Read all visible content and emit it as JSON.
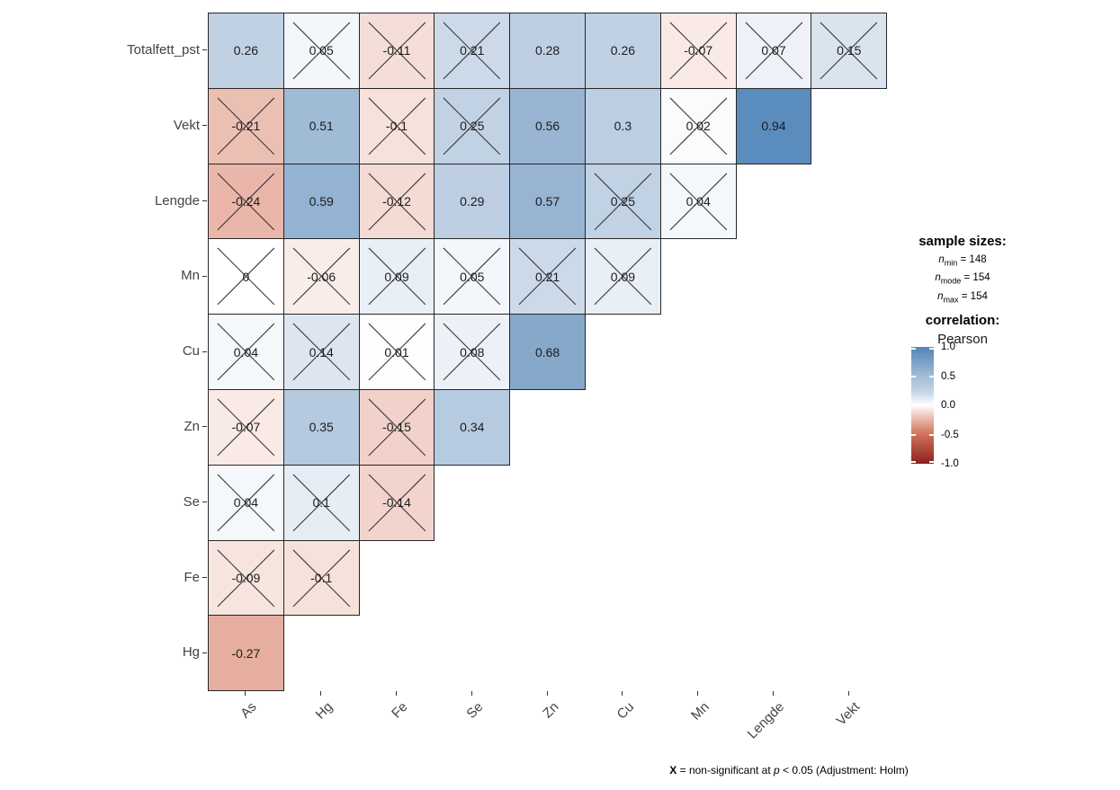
{
  "chart_data": {
    "type": "heatmap",
    "subtype": "lower-triangle-correlation-matrix",
    "title": "",
    "x_categories": [
      "As",
      "Hg",
      "Fe",
      "Se",
      "Zn",
      "Cu",
      "Mn",
      "Lengde",
      "Vekt"
    ],
    "y_categories": [
      "Totalfett_pst",
      "Vekt",
      "Lengde",
      "Mn",
      "Cu",
      "Zn",
      "Se",
      "Fe",
      "Hg"
    ],
    "note": "cells marked significant:false are overprinted with an X (non-significant)",
    "rows": [
      {
        "label": "Totalfett_pst",
        "cells": [
          {
            "value": 0.26,
            "label": "0.26",
            "significant": true
          },
          {
            "value": 0.05,
            "label": "0.05",
            "significant": false
          },
          {
            "value": -0.11,
            "label": "-0.11",
            "significant": false
          },
          {
            "value": 0.21,
            "label": "0.21",
            "significant": false
          },
          {
            "value": 0.28,
            "label": "0.28",
            "significant": true
          },
          {
            "value": 0.26,
            "label": "0.26",
            "significant": true
          },
          {
            "value": -0.07,
            "label": "-0.07",
            "significant": false
          },
          {
            "value": 0.07,
            "label": "0.07",
            "significant": false
          },
          {
            "value": 0.15,
            "label": "0.15",
            "significant": false
          }
        ]
      },
      {
        "label": "Vekt",
        "cells": [
          {
            "value": -0.21,
            "label": "-0.21",
            "significant": false
          },
          {
            "value": 0.51,
            "label": "0.51",
            "significant": true
          },
          {
            "value": -0.1,
            "label": "-0.1",
            "significant": false
          },
          {
            "value": 0.25,
            "label": "0.25",
            "significant": false
          },
          {
            "value": 0.56,
            "label": "0.56",
            "significant": true
          },
          {
            "value": 0.3,
            "label": "0.3",
            "significant": true
          },
          {
            "value": 0.02,
            "label": "0.02",
            "significant": false
          },
          {
            "value": 0.94,
            "label": "0.94",
            "significant": true
          }
        ]
      },
      {
        "label": "Lengde",
        "cells": [
          {
            "value": -0.24,
            "label": "-0.24",
            "significant": false
          },
          {
            "value": 0.59,
            "label": "0.59",
            "significant": true
          },
          {
            "value": -0.12,
            "label": "-0.12",
            "significant": false
          },
          {
            "value": 0.29,
            "label": "0.29",
            "significant": true
          },
          {
            "value": 0.57,
            "label": "0.57",
            "significant": true
          },
          {
            "value": 0.25,
            "label": "0.25",
            "significant": false
          },
          {
            "value": 0.04,
            "label": "0.04",
            "significant": false
          }
        ]
      },
      {
        "label": "Mn",
        "cells": [
          {
            "value": 0,
            "label": "0",
            "significant": false
          },
          {
            "value": -0.06,
            "label": "-0.06",
            "significant": false
          },
          {
            "value": 0.09,
            "label": "0.09",
            "significant": false
          },
          {
            "value": 0.05,
            "label": "0.05",
            "significant": false
          },
          {
            "value": 0.21,
            "label": "0.21",
            "significant": false
          },
          {
            "value": 0.09,
            "label": "0.09",
            "significant": false
          }
        ]
      },
      {
        "label": "Cu",
        "cells": [
          {
            "value": 0.04,
            "label": "0.04",
            "significant": false
          },
          {
            "value": 0.14,
            "label": "0.14",
            "significant": false
          },
          {
            "value": 0.01,
            "label": "0.01",
            "significant": false
          },
          {
            "value": 0.08,
            "label": "0.08",
            "significant": false
          },
          {
            "value": 0.68,
            "label": "0.68",
            "significant": true
          }
        ]
      },
      {
        "label": "Zn",
        "cells": [
          {
            "value": -0.07,
            "label": "-0.07",
            "significant": false
          },
          {
            "value": 0.35,
            "label": "0.35",
            "significant": true
          },
          {
            "value": -0.15,
            "label": "-0.15",
            "significant": false
          },
          {
            "value": 0.34,
            "label": "0.34",
            "significant": true
          }
        ]
      },
      {
        "label": "Se",
        "cells": [
          {
            "value": 0.04,
            "label": "0.04",
            "significant": false
          },
          {
            "value": 0.1,
            "label": "0.1",
            "significant": false
          },
          {
            "value": -0.14,
            "label": "-0.14",
            "significant": false
          }
        ]
      },
      {
        "label": "Fe",
        "cells": [
          {
            "value": -0.09,
            "label": "-0.09",
            "significant": false
          },
          {
            "value": -0.1,
            "label": "-0.1",
            "significant": false
          }
        ]
      },
      {
        "label": "Hg",
        "cells": [
          {
            "value": -0.27,
            "label": "-0.27",
            "significant": true
          }
        ]
      }
    ],
    "legend": {
      "sample_sizes_title": "sample sizes:",
      "sample_sizes": [
        {
          "n_sub": "min",
          "value": "148"
        },
        {
          "n_sub": "mode",
          "value": "154"
        },
        {
          "n_sub": "max",
          "value": "154"
        }
      ],
      "correlation_title": "correlation:",
      "method": "Pearson",
      "colorbar_ticks": [
        "1.0",
        "0.5",
        "0.0",
        "-0.5",
        "-1.0"
      ],
      "colorbar_range": [
        1,
        -1
      ],
      "palette_stops": [
        {
          "v": -1.0,
          "color": "#8B2020"
        },
        {
          "v": -0.5,
          "color": "#CE7257"
        },
        {
          "v": -0.25,
          "color": "#E8B3A5"
        },
        {
          "v": 0.0,
          "color": "#FFFFFF"
        },
        {
          "v": 0.25,
          "color": "#C2D2E5"
        },
        {
          "v": 0.5,
          "color": "#A2BCD7"
        },
        {
          "v": 0.75,
          "color": "#7BA0C7"
        },
        {
          "v": 1.0,
          "color": "#5186BB"
        }
      ]
    },
    "caption": {
      "x_bold": "X",
      "text1": " = non-significant at ",
      "p_italic": "p",
      "text2": " < 0.05 (Adjustment: Holm)"
    }
  }
}
